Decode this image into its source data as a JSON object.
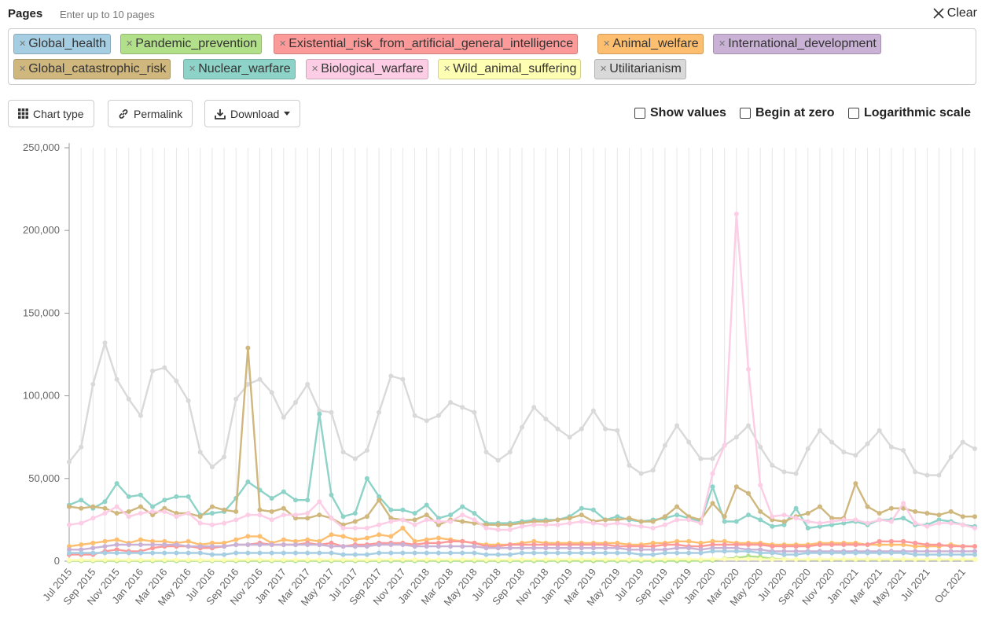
{
  "header": {
    "title": "Pages",
    "hint": "Enter up to 10 pages",
    "clear_label": "Clear"
  },
  "chips": [
    {
      "label": "Global_health",
      "color": "#a6cee3"
    },
    {
      "label": "Pandemic_prevention",
      "color": "#b2df8a"
    },
    {
      "label": "Existential_risk_from_artificial_general_intelligence",
      "color": "#fb9a99"
    },
    {
      "label": "Animal_welfare",
      "color": "#fdbf6f"
    },
    {
      "label": "International_development",
      "color": "#cab2d6"
    },
    {
      "label": "Global_catastrophic_risk",
      "color": "#cfb77d"
    },
    {
      "label": "Nuclear_warfare",
      "color": "#8dd3c7"
    },
    {
      "label": "Biological_warfare",
      "color": "#fccde5"
    },
    {
      "label": "Wild_animal_suffering",
      "color": "#ffffb3"
    },
    {
      "label": "Utilitarianism",
      "color": "#d9d9d9"
    }
  ],
  "toolbar": {
    "chart_type": "Chart type",
    "permalink": "Permalink",
    "download": "Download"
  },
  "options": {
    "show_values": "Show values",
    "begin_at_zero": "Begin at zero",
    "log_scale": "Logarithmic scale"
  },
  "chart_data": {
    "type": "line",
    "title": "",
    "xlabel": "",
    "ylabel": "",
    "ylim": [
      0,
      250000
    ],
    "yticks": [
      "0",
      "50,000",
      "100,000",
      "150,000",
      "200,000",
      "250,000"
    ],
    "ytick_values": [
      0,
      50000,
      100000,
      150000,
      200000,
      250000
    ],
    "categories": [
      "Jul 2015",
      "Aug 2015",
      "Sep 2015",
      "Oct 2015",
      "Nov 2015",
      "Dec 2015",
      "Jan 2016",
      "Feb 2016",
      "Mar 2016",
      "Apr 2016",
      "May 2016",
      "Jun 2016",
      "Jul 2016",
      "Aug 2016",
      "Sep 2016",
      "Oct 2016",
      "Nov 2016",
      "Dec 2016",
      "Jan 2017",
      "Feb 2017",
      "Mar 2017",
      "Apr 2017",
      "May 2017",
      "Jun 2017",
      "Jul 2017",
      "Aug 2017",
      "Sep 2017",
      "Oct 2017",
      "Nov 2017",
      "Dec 2017",
      "Jan 2018",
      "Feb 2018",
      "Mar 2018",
      "Apr 2018",
      "May 2018",
      "Jun 2018",
      "Jul 2018",
      "Aug 2018",
      "Sep 2018",
      "Oct 2018",
      "Nov 2018",
      "Dec 2018",
      "Jan 2019",
      "Feb 2019",
      "Mar 2019",
      "Apr 2019",
      "May 2019",
      "Jun 2019",
      "Jul 2019",
      "Aug 2019",
      "Sep 2019",
      "Oct 2019",
      "Nov 2019",
      "Dec 2019",
      "Jan 2020",
      "Feb 2020",
      "Mar 2020",
      "Apr 2020",
      "May 2020",
      "Jun 2020",
      "Jul 2020",
      "Aug 2020",
      "Sep 2020",
      "Oct 2020",
      "Nov 2020",
      "Dec 2020",
      "Jan 2021",
      "Feb 2021",
      "Mar 2021",
      "Apr 2021",
      "May 2021",
      "Jun 2021",
      "Jul 2021",
      "Aug 2021",
      "Sep 2021",
      "Oct 2021",
      "Nov 2021"
    ],
    "xtick_labels": [
      "Jul 2015",
      "Sep 2015",
      "Nov 2015",
      "Jan 2016",
      "Mar 2016",
      "May 2016",
      "Jul 2016",
      "Sep 2016",
      "Nov 2016",
      "Jan 2017",
      "Mar 2017",
      "May 2017",
      "Jul 2017",
      "Sep 2017",
      "Nov 2017",
      "Jan 2018",
      "Mar 2018",
      "May 2018",
      "Jul 2018",
      "Sep 2018",
      "Nov 2018",
      "Jan 2019",
      "Mar 2019",
      "May 2019",
      "Jul 2019",
      "Sep 2019",
      "Nov 2019",
      "Jan 2020",
      "Mar 2020",
      "May 2020",
      "Jul 2020",
      "Sep 2020",
      "Nov 2020",
      "Jan 2021",
      "Mar 2021",
      "May 2021",
      "Jul 2021",
      "Oct 2021"
    ],
    "series": [
      {
        "name": "Utilitarianism",
        "color": "#d9d9d9",
        "values": [
          60000,
          69000,
          107000,
          132000,
          110000,
          98000,
          88000,
          115000,
          117000,
          109000,
          97000,
          66000,
          57000,
          63000,
          98000,
          107000,
          110000,
          102000,
          87000,
          96000,
          107000,
          91000,
          90000,
          66000,
          62000,
          67000,
          90000,
          112000,
          110000,
          88000,
          85000,
          88000,
          96000,
          93000,
          90000,
          66000,
          61000,
          66000,
          81000,
          93000,
          86000,
          80000,
          75000,
          80000,
          91000,
          80000,
          79000,
          58000,
          53000,
          55000,
          70000,
          82000,
          72000,
          62000,
          62000,
          70000,
          75000,
          82000,
          69000,
          58000,
          54000,
          53000,
          68000,
          79000,
          72000,
          66000,
          64000,
          71000,
          79000,
          69000,
          67000,
          54000,
          52000,
          52000,
          63000,
          72000,
          68000
        ]
      },
      {
        "name": "Nuclear_warfare",
        "color": "#8dd3c7",
        "values": [
          34000,
          37000,
          32000,
          36000,
          47000,
          39000,
          40000,
          33000,
          37000,
          39000,
          39000,
          28000,
          29000,
          30000,
          38000,
          48000,
          43000,
          38000,
          42000,
          37000,
          37000,
          89000,
          40000,
          27000,
          29000,
          50000,
          39000,
          31000,
          31000,
          29000,
          34000,
          26000,
          28000,
          33000,
          29000,
          23000,
          23000,
          23000,
          24000,
          25000,
          25000,
          25000,
          27000,
          32000,
          31000,
          25000,
          27000,
          25000,
          24000,
          25000,
          26000,
          28000,
          26000,
          24000,
          45000,
          24000,
          24000,
          28000,
          25000,
          21000,
          22000,
          32000,
          20000,
          21000,
          22000,
          23000,
          24000,
          22000,
          25000,
          25000,
          26000,
          22000,
          22000,
          25000,
          24000,
          22000,
          21000
        ]
      },
      {
        "name": "Global_catastrophic_risk",
        "color": "#cfb77d",
        "values": [
          33000,
          32000,
          33000,
          32000,
          29000,
          30000,
          33000,
          28000,
          32000,
          29000,
          29000,
          27000,
          33000,
          31000,
          30000,
          129000,
          31000,
          30000,
          32000,
          26000,
          26000,
          28000,
          26000,
          22000,
          24000,
          27000,
          37000,
          26000,
          25000,
          25000,
          28000,
          22000,
          25000,
          24000,
          23000,
          22000,
          22000,
          22000,
          23000,
          24000,
          24000,
          25000,
          26000,
          28000,
          24000,
          25000,
          25000,
          26000,
          24000,
          24000,
          27000,
          33000,
          27000,
          25000,
          35000,
          27000,
          45000,
          41000,
          30000,
          25000,
          24000,
          27000,
          29000,
          33000,
          26000,
          26000,
          47000,
          33000,
          29000,
          32000,
          32000,
          30000,
          29000,
          28000,
          30000,
          27000,
          27000
        ]
      },
      {
        "name": "Biological_warfare",
        "color": "#fccde5",
        "values": [
          22000,
          23000,
          26000,
          29000,
          33000,
          27000,
          29000,
          30000,
          30000,
          27000,
          29000,
          23000,
          22000,
          23000,
          25000,
          28000,
          28000,
          25000,
          28000,
          28000,
          29000,
          36000,
          26000,
          20000,
          20000,
          20000,
          22000,
          24000,
          25000,
          22000,
          25000,
          24000,
          24000,
          28000,
          25000,
          20000,
          19000,
          19000,
          21000,
          22000,
          22000,
          22000,
          23000,
          24000,
          23000,
          22000,
          23000,
          22000,
          21000,
          20000,
          22000,
          25000,
          25000,
          23000,
          53000,
          70000,
          210000,
          116000,
          46000,
          27000,
          28000,
          26000,
          24000,
          23000,
          24000,
          25000,
          25000,
          23000,
          25000,
          24000,
          35000,
          23000,
          21000,
          23000,
          23000,
          22000,
          20000
        ]
      },
      {
        "name": "Animal_welfare",
        "color": "#fdbf6f",
        "values": [
          9000,
          10000,
          11000,
          12000,
          13000,
          11000,
          13000,
          12000,
          12000,
          11000,
          12000,
          10000,
          11000,
          11000,
          13000,
          15000,
          15000,
          11000,
          13000,
          12000,
          13000,
          12000,
          16000,
          15000,
          13000,
          14000,
          16000,
          15000,
          20000,
          12000,
          13000,
          14000,
          13000,
          12000,
          11000,
          10000,
          10000,
          10000,
          11000,
          12000,
          11000,
          11000,
          11000,
          11000,
          11000,
          11000,
          11000,
          10000,
          10000,
          11000,
          11000,
          12000,
          12000,
          11000,
          12000,
          12000,
          11000,
          11000,
          11000,
          10000,
          10000,
          10000,
          10000,
          11000,
          11000,
          11000,
          11000,
          10000,
          10000,
          10000,
          10000,
          9000,
          9000,
          9000,
          10000,
          9000,
          9000
        ]
      },
      {
        "name": "Existential_risk_from_artificial_general_intelligence",
        "color": "#fb9a99",
        "values": [
          4000,
          4000,
          4000,
          6000,
          7000,
          6000,
          6000,
          8000,
          9000,
          9000,
          9000,
          8000,
          8000,
          9000,
          10000,
          10000,
          11000,
          10000,
          10000,
          10000,
          11000,
          10000,
          11000,
          9000,
          10000,
          10000,
          11000,
          11000,
          11000,
          10000,
          11000,
          11000,
          12000,
          12000,
          11000,
          9000,
          9000,
          10000,
          10000,
          10000,
          10000,
          10000,
          10000,
          10000,
          10000,
          10000,
          9000,
          9000,
          9000,
          9000,
          10000,
          10000,
          9000,
          9000,
          10000,
          10000,
          10000,
          10000,
          10000,
          9000,
          9000,
          9000,
          9000,
          10000,
          10000,
          10000,
          10000,
          10000,
          12000,
          12000,
          12000,
          11000,
          10000,
          10000,
          9000,
          9000,
          9000
        ]
      },
      {
        "name": "International_development",
        "color": "#cab2d6",
        "values": [
          7000,
          7000,
          8000,
          9000,
          10000,
          10000,
          10000,
          10000,
          10000,
          10000,
          9000,
          9000,
          9000,
          9000,
          10000,
          10000,
          10000,
          10000,
          10000,
          10000,
          10000,
          10000,
          9000,
          9000,
          9000,
          9000,
          10000,
          10000,
          10000,
          9000,
          9000,
          9000,
          9000,
          9000,
          9000,
          8000,
          8000,
          8000,
          8000,
          8000,
          8000,
          8000,
          8000,
          8000,
          8000,
          8000,
          8000,
          7000,
          7000,
          7000,
          7000,
          8000,
          8000,
          7000,
          8000,
          8000,
          8000,
          7000,
          7000,
          6000,
          6000,
          6000,
          6000,
          6000,
          6000,
          6000,
          6000,
          6000,
          6000,
          6000,
          6000,
          6000,
          6000,
          6000,
          6000,
          6000,
          6000
        ]
      },
      {
        "name": "Global_health",
        "color": "#a6cee3",
        "values": [
          5000,
          5000,
          5000,
          5000,
          5000,
          5000,
          5000,
          5000,
          5000,
          5000,
          5000,
          5000,
          4000,
          4000,
          5000,
          5000,
          5000,
          5000,
          5000,
          5000,
          5000,
          5000,
          5000,
          4000,
          4000,
          4000,
          5000,
          5000,
          5000,
          5000,
          5000,
          5000,
          5000,
          5000,
          5000,
          4000,
          4000,
          4000,
          5000,
          5000,
          5000,
          5000,
          5000,
          5000,
          5000,
          5000,
          5000,
          5000,
          4000,
          4000,
          5000,
          5000,
          5000,
          5000,
          6000,
          6000,
          6000,
          6000,
          5000,
          5000,
          4000,
          4000,
          5000,
          5000,
          5000,
          5000,
          5000,
          5000,
          5000,
          5000,
          5000,
          4000,
          4000,
          4000,
          4000,
          4000,
          4000
        ]
      },
      {
        "name": "Pandemic_prevention",
        "color": "#b2df8a",
        "values": [
          200,
          200,
          200,
          200,
          200,
          200,
          200,
          200,
          200,
          200,
          200,
          200,
          200,
          200,
          200,
          200,
          200,
          200,
          200,
          200,
          200,
          200,
          200,
          200,
          200,
          200,
          200,
          200,
          200,
          200,
          200,
          200,
          200,
          200,
          200,
          200,
          200,
          200,
          200,
          200,
          200,
          200,
          200,
          200,
          200,
          200,
          200,
          200,
          200,
          200,
          200,
          200,
          200,
          300,
          500,
          1500,
          2000,
          3000,
          2500,
          1500,
          1200,
          1000,
          1000,
          1000,
          1000,
          1000,
          1000,
          1000,
          1000,
          1000,
          1000,
          1000,
          1000,
          1000,
          1000,
          1000,
          1000
        ]
      },
      {
        "name": "Wild_animal_suffering",
        "color": "#ffffb3",
        "values": [
          600,
          700,
          700,
          800,
          800,
          700,
          800,
          800,
          800,
          800,
          800,
          700,
          700,
          700,
          800,
          900,
          900,
          800,
          800,
          900,
          900,
          900,
          900,
          800,
          800,
          800,
          900,
          1000,
          1000,
          900,
          1000,
          1000,
          1000,
          1000,
          1000,
          900,
          900,
          900,
          1000,
          1000,
          1000,
          1000,
          1100,
          1100,
          1100,
          1000,
          1000,
          1000,
          1000,
          1000,
          1100,
          1200,
          1200,
          1100,
          1200,
          1300,
          1300,
          1300,
          1200,
          1100,
          1100,
          1100,
          1100,
          1200,
          1200,
          1200,
          1200,
          1200,
          1200,
          1200,
          1200,
          1100,
          1100,
          1100,
          1100,
          1100,
          1100
        ]
      }
    ]
  }
}
